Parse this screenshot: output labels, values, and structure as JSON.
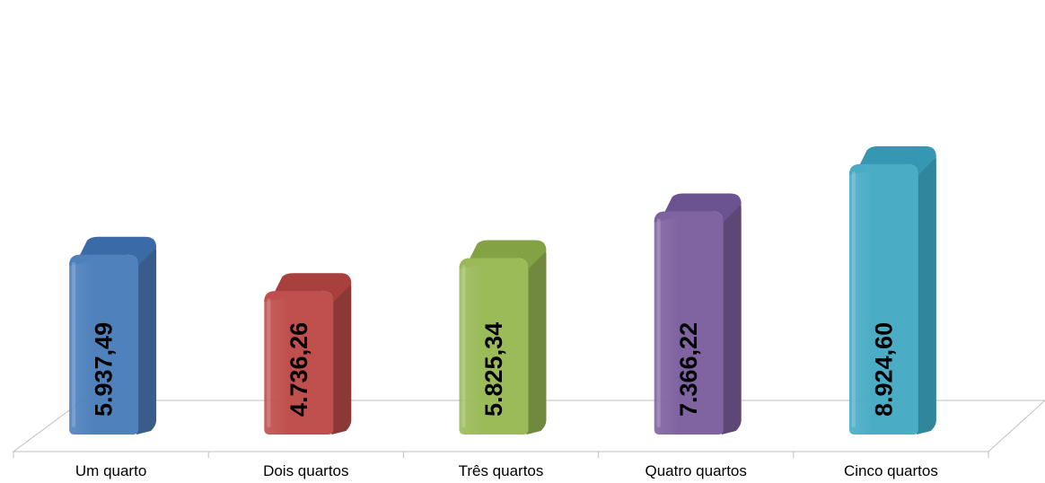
{
  "chart_data": {
    "type": "bar",
    "categories": [
      "Um quarto",
      "Dois quartos",
      "Três quartos",
      "Quatro quartos",
      "Cinco quartos"
    ],
    "values": [
      5937.49,
      4736.26,
      5825.34,
      7366.22,
      8924.6
    ],
    "value_labels": [
      "5.937,49",
      "4.736,26",
      "5.825,34",
      "7.366,22",
      "8.924,60"
    ],
    "colors": [
      "#4F81BD",
      "#C0504D",
      "#9BBB59",
      "#8064A2",
      "#4BACC6"
    ],
    "side_colors": [
      "#385D8A",
      "#8C3836",
      "#71893F",
      "#5C4776",
      "#31859C"
    ],
    "top_colors": [
      "#3A6BA8",
      "#A8413E",
      "#83A243",
      "#6B5290",
      "#3597B2"
    ],
    "title": "",
    "xlabel": "",
    "ylabel": "",
    "ylim": [
      0,
      9000
    ],
    "grid": false,
    "legend": "none",
    "style": "3d-rounded-columns"
  }
}
